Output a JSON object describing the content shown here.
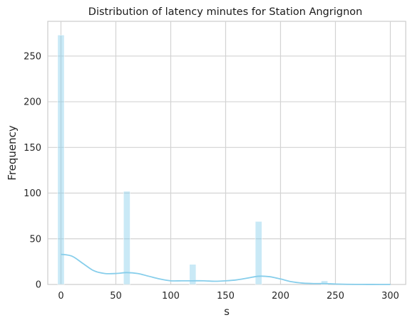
{
  "chart_data": {
    "type": "histogram",
    "title": "Distribution of latency minutes for Station Angrignon",
    "xlabel": "s",
    "ylabel": "Frequency",
    "xlim": [
      -12,
      314
    ],
    "ylim": [
      0,
      288
    ],
    "x_ticks": [
      0,
      50,
      100,
      150,
      200,
      250,
      300
    ],
    "y_ticks": [
      0,
      50,
      100,
      150,
      200,
      250
    ],
    "grid": true,
    "bar_color": "#87ceeb",
    "kde_color": "#87ceeb",
    "bin_width": 6,
    "bins": [
      {
        "x": 0,
        "count": 273
      },
      {
        "x": 60,
        "count": 102
      },
      {
        "x": 120,
        "count": 22
      },
      {
        "x": 180,
        "count": 69
      },
      {
        "x": 240,
        "count": 4
      }
    ],
    "kde": {
      "x": [
        0,
        10,
        20,
        30,
        40,
        50,
        60,
        70,
        80,
        90,
        100,
        110,
        120,
        130,
        140,
        150,
        160,
        170,
        180,
        190,
        200,
        210,
        220,
        230,
        240,
        250,
        260,
        270,
        280,
        290,
        300
      ],
      "y": [
        33,
        31,
        23,
        15,
        12,
        12,
        13,
        12,
        9,
        6,
        4,
        4,
        4,
        4,
        3.5,
        4,
        5,
        7,
        9,
        8.5,
        6,
        3,
        1.5,
        1,
        1,
        0.5,
        0.2,
        0.1,
        0.05,
        0,
        0
      ]
    }
  }
}
